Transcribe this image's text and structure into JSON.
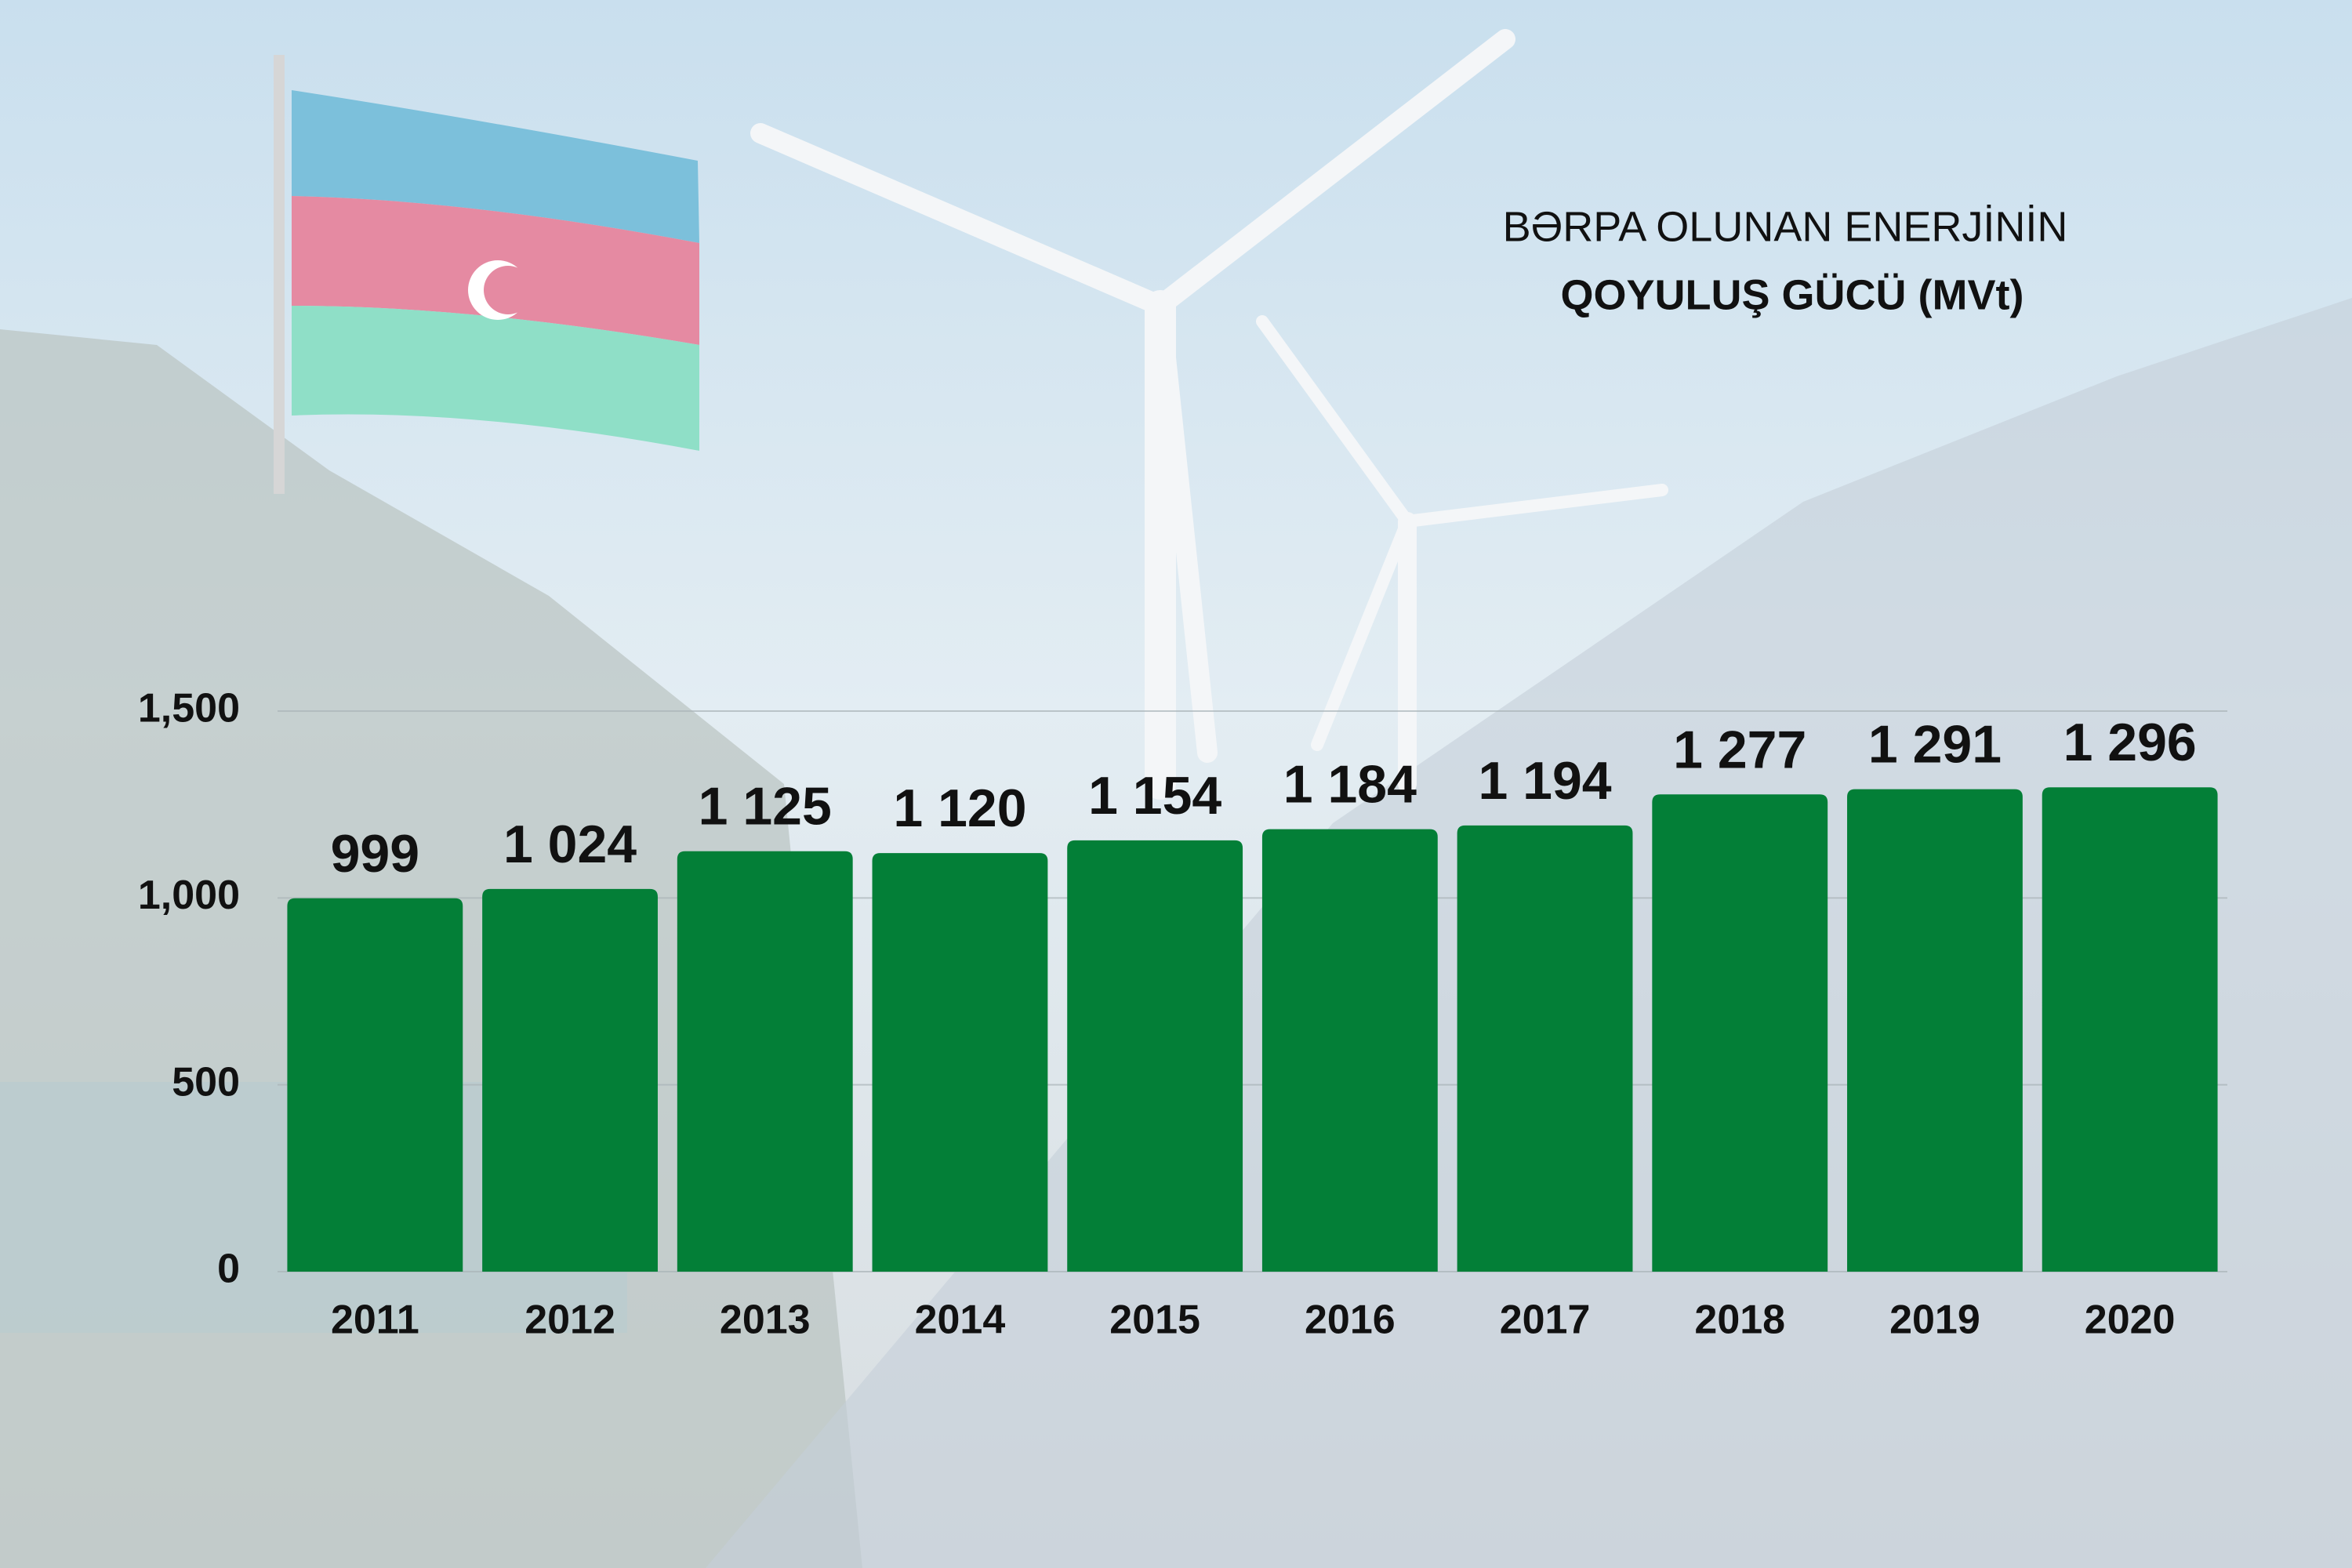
{
  "chart_data": {
    "type": "bar",
    "title": "BƏRPA OLUNAN ENERJİNİN",
    "subtitle": "QOYULUŞ GÜCÜ (MVt)",
    "categories": [
      "2011",
      "2012",
      "2013",
      "2014",
      "2015",
      "2016",
      "2017",
      "2018",
      "2019",
      "2020"
    ],
    "values": [
      999,
      1024,
      1125,
      1120,
      1154,
      1184,
      1194,
      1277,
      1291,
      1296
    ],
    "value_labels": [
      "999",
      "1 024",
      "1 125",
      "1 120",
      "1 154",
      "1 184",
      "1 194",
      "1 277",
      "1 291",
      "1 296"
    ],
    "color": "#037f37",
    "ylim": [
      0,
      1500
    ],
    "yticks": [
      0,
      500,
      {
        "value": 1000,
        "label": "1,000"
      },
      {
        "value": 1500,
        "label": "1,500"
      }
    ],
    "grid": true
  }
}
